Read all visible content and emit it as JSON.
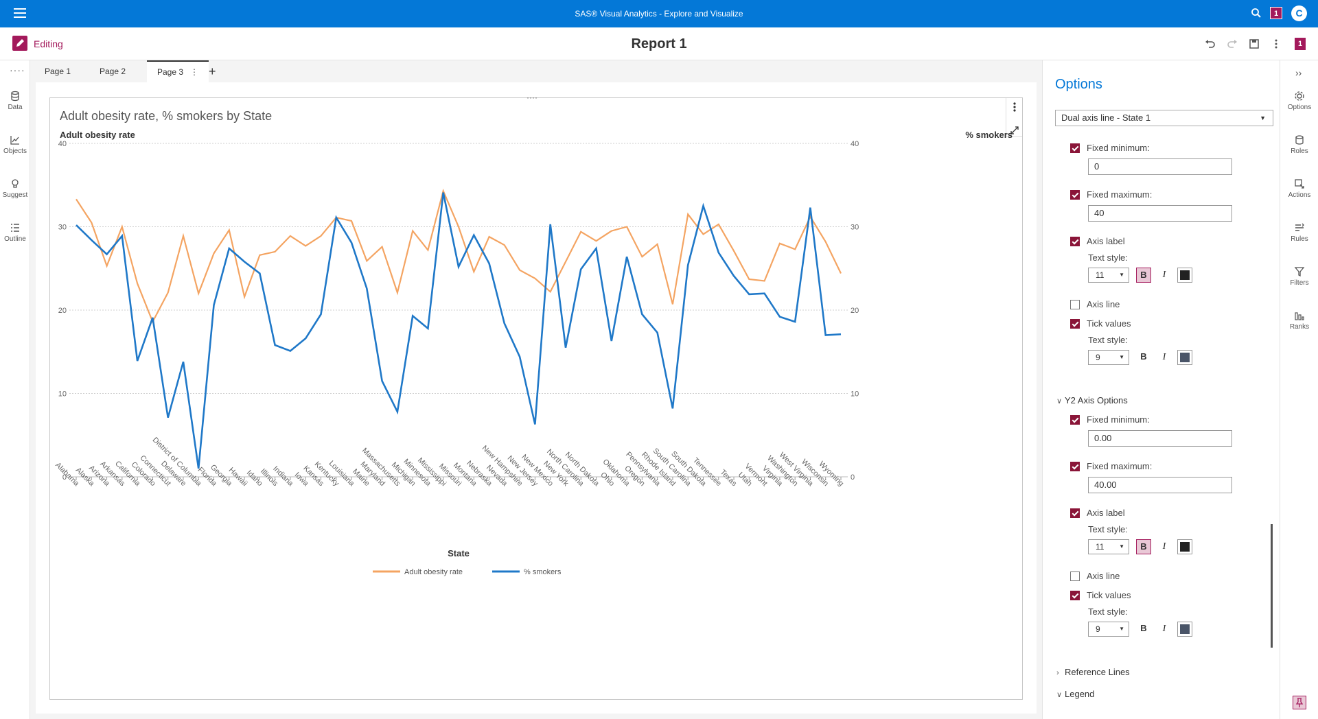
{
  "app": {
    "title": "SAS® Visual Analytics - Explore and Visualize",
    "badge": "1",
    "avatar_initial": "C"
  },
  "report": {
    "mode_label": "Editing",
    "title": "Report 1",
    "badge": "1"
  },
  "left_nav": [
    {
      "label": "Data",
      "icon": "database-icon"
    },
    {
      "label": "Objects",
      "icon": "chart-icon"
    },
    {
      "label": "Suggest",
      "icon": "lightbulb-icon"
    },
    {
      "label": "Outline",
      "icon": "list-icon"
    }
  ],
  "tabs": [
    {
      "label": "Page 1",
      "active": false
    },
    {
      "label": "Page 2",
      "active": false
    },
    {
      "label": "Page 3",
      "active": true
    }
  ],
  "chart": {
    "title": "Adult obesity rate, % smokers by State",
    "y1_label": "Adult obesity rate",
    "y2_label": "% smokers",
    "x_label": "State"
  },
  "chart_data": {
    "type": "line",
    "title": "Adult obesity rate, % smokers by State",
    "xlabel": "State",
    "ylabel": "Adult obesity rate",
    "y2label": "% smokers",
    "ylim": [
      0,
      40
    ],
    "y2lim": [
      0,
      40
    ],
    "yticks": [
      0,
      10,
      20,
      30,
      40
    ],
    "grid": true,
    "legend_position": "bottom",
    "categories": [
      "Alabama",
      "Alaska",
      "Arizona",
      "Arkansas",
      "California",
      "Colorado",
      "Connecticut",
      "Delaware",
      "District of Columbia",
      "Florida",
      "Georgia",
      "Hawaii",
      "Idaho",
      "Illinois",
      "Indiana",
      "Iowa",
      "Kansas",
      "Kentucky",
      "Louisiana",
      "Maine",
      "Maryland",
      "Massachusetts",
      "Michigan",
      "Minnesota",
      "Mississippi",
      "Missouri",
      "Montana",
      "Nebraska",
      "Nevada",
      "New Hampshire",
      "New Jersey",
      "New Mexico",
      "New York",
      "North Carolina",
      "North Dakota",
      "Ohio",
      "Oklahoma",
      "Oregon",
      "Pennsylvania",
      "Rhode Island",
      "South Carolina",
      "South Dakota",
      "Tennessee",
      "Texas",
      "Utah",
      "Vermont",
      "Virginia",
      "Washington",
      "West Virginia",
      "Wisconsin",
      "Wyoming"
    ],
    "series": [
      {
        "name": "Adult obesity rate",
        "axis": "y1",
        "color": "#f4a462",
        "values": [
          33.3,
          30.5,
          25.3,
          30.0,
          23.2,
          18.6,
          22.1,
          28.9,
          22.0,
          26.8,
          29.6,
          21.6,
          26.6,
          27.0,
          28.9,
          27.7,
          28.9,
          31.1,
          30.7,
          25.9,
          27.6,
          22.1,
          29.5,
          27.2,
          34.3,
          30.0,
          24.6,
          28.8,
          27.8,
          24.8,
          23.8,
          22.2,
          25.8,
          29.4,
          28.3,
          29.5,
          30.0,
          26.4,
          27.9,
          20.7,
          31.5,
          29.1,
          30.3,
          27.1,
          23.7,
          23.5,
          28.0,
          27.3,
          31.2,
          28.2,
          24.4
        ]
      },
      {
        "name": "% smokers",
        "axis": "y2",
        "color": "#1f78c8",
        "values": [
          30.2,
          28.4,
          26.7,
          28.9,
          13.9,
          19.1,
          7.1,
          13.8,
          1.0,
          20.6,
          27.4,
          25.8,
          24.4,
          15.8,
          15.1,
          16.6,
          19.5,
          31.1,
          28.1,
          22.6,
          11.5,
          7.8,
          19.3,
          17.8,
          34.1,
          25.2,
          29.0,
          25.6,
          18.4,
          14.4,
          6.3,
          30.3,
          15.5,
          24.9,
          27.4,
          16.3,
          26.4,
          19.5,
          17.3,
          8.2,
          25.4,
          32.5,
          26.9,
          24.1,
          21.9,
          22.0,
          19.2,
          18.6,
          32.3,
          17.0,
          17.1
        ]
      }
    ]
  },
  "options": {
    "title": "Options",
    "object_select": "Dual axis line - State 1",
    "y1": {
      "fixed_min_label": "Fixed minimum:",
      "fixed_min_value": "0",
      "fixed_max_label": "Fixed maximum:",
      "fixed_max_value": "40",
      "axis_label": "Axis label",
      "text_style": "Text style:",
      "label_size": "11",
      "axis_line": "Axis line",
      "tick_values": "Tick values",
      "tick_size": "9"
    },
    "y2_section": "Y2 Axis Options",
    "y2": {
      "fixed_min_label": "Fixed minimum:",
      "fixed_min_value": "0.00",
      "fixed_max_label": "Fixed maximum:",
      "fixed_max_value": "40.00",
      "axis_label": "Axis label",
      "text_style": "Text style:",
      "label_size": "11",
      "axis_line": "Axis line",
      "tick_values": "Tick values",
      "tick_size": "9"
    },
    "bold_glyph": "B",
    "italic_glyph": "I",
    "reference_lines": "Reference Lines",
    "legend": "Legend"
  },
  "right_rail": [
    {
      "label": "Options",
      "icon": "options-icon"
    },
    {
      "label": "Roles",
      "icon": "roles-icon"
    },
    {
      "label": "Actions",
      "icon": "actions-icon"
    },
    {
      "label": "Rules",
      "icon": "rules-icon"
    },
    {
      "label": "Filters",
      "icon": "filter-icon"
    },
    {
      "label": "Ranks",
      "icon": "ranks-icon"
    }
  ]
}
